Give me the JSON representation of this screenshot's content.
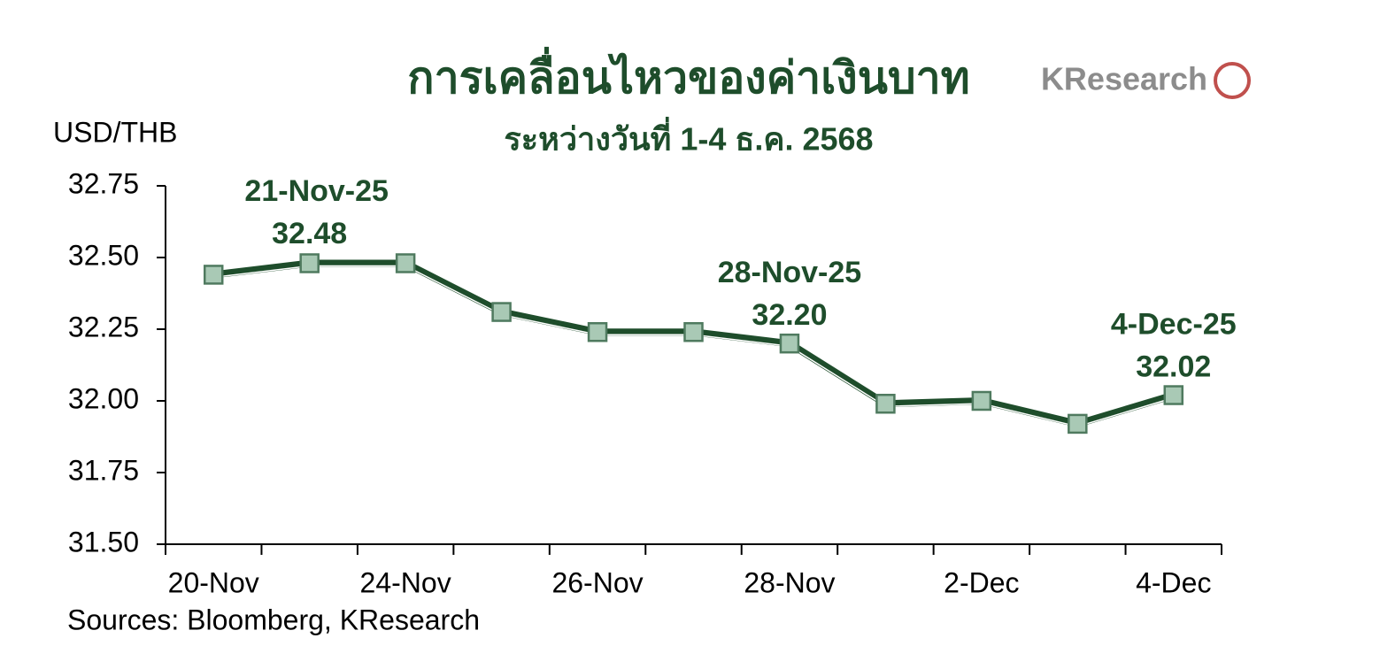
{
  "chart_data": {
    "type": "line",
    "title": "การเคลื่อนไหวของค่าเงินบาท",
    "subtitle": "ระหว่างวันที่ 1-4 ธ.ค. 2568",
    "logo": "KResearch",
    "y_axis_label": "USD/THB",
    "source": "Sources: Bloomberg, KResearch",
    "categories": [
      "20-Nov",
      null,
      "24-Nov",
      null,
      "26-Nov",
      null,
      "28-Nov",
      null,
      "2-Dec",
      null,
      "4-Dec"
    ],
    "series": [
      {
        "name": "USD/THB",
        "color": "#1e4d2b",
        "values": [
          32.44,
          32.48,
          32.48,
          32.31,
          32.24,
          32.24,
          32.2,
          31.99,
          32.0,
          31.92,
          32.02
        ],
        "value_labels": [
          null,
          "32.48",
          null,
          null,
          null,
          null,
          "32.20",
          null,
          null,
          null,
          "32.02"
        ]
      }
    ],
    "annotations": [
      "21-Nov-25",
      "28-Nov-25",
      "4-Dec-25"
    ],
    "marker_color": "#a9c9b5",
    "ylim": [
      31.5,
      32.75
    ],
    "yticks": [
      {
        "value": 31.5,
        "label": "31.50"
      },
      31.75,
      {
        "value": 32.0,
        "label": "32.00"
      },
      32.25,
      {
        "value": 32.5,
        "label": "32.50"
      },
      32.75
    ]
  }
}
